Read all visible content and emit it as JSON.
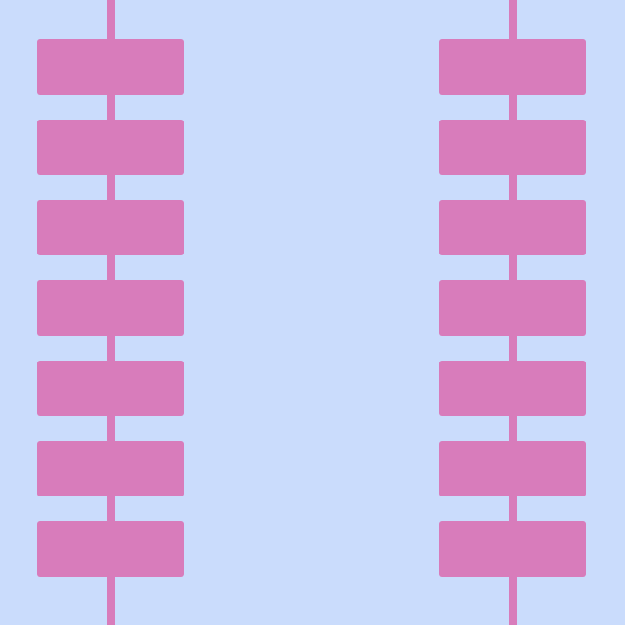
{
  "colors": {
    "background": "#cadcfc",
    "accent": "#d87cbb"
  },
  "pattern": {
    "columns": [
      {
        "id": "left",
        "blocks": 7
      },
      {
        "id": "right",
        "blocks": 7
      }
    ]
  }
}
